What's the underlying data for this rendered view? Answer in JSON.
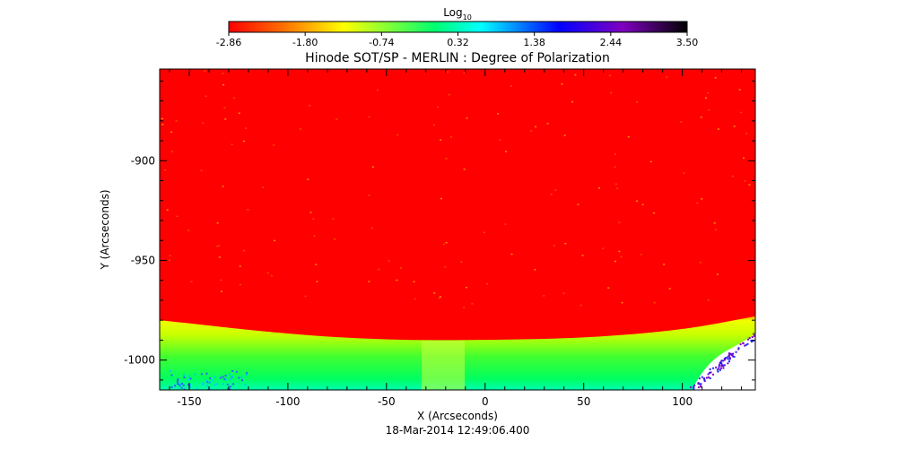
{
  "chart_data": {
    "type": "heatmap",
    "title": "Hinode SOT/SP - MERLIN : Degree of Polarization",
    "xlabel": "X (Arcseconds)",
    "ylabel": "Y (Arcseconds)",
    "timestamp": "18-Mar-2014 12:49:06.400",
    "xlim": [
      -165,
      137
    ],
    "ylim": [
      -1015,
      -854
    ],
    "xticks": [
      -150,
      -100,
      -50,
      0,
      50,
      100
    ],
    "yticks": [
      -900,
      -950,
      -1000
    ],
    "colorbar": {
      "label_base": "Log",
      "label_sub": "10",
      "min": -2.86,
      "max": 3.5,
      "ticks": [
        "-2.86",
        "-1.80",
        "-0.74",
        "0.32",
        "1.38",
        "2.44",
        "3.50"
      ],
      "colors": [
        "#ff0000",
        "#ff8000",
        "#ffff00",
        "#00ff60",
        "#00ffff",
        "#0000ff",
        "#8000c0",
        "#000000"
      ]
    },
    "limb": {
      "description_points": [
        [
          -165,
          -980
        ],
        [
          -100,
          -987
        ],
        [
          -50,
          -990
        ],
        [
          0,
          -990
        ],
        [
          50,
          -989
        ],
        [
          100,
          -985
        ],
        [
          137,
          -978
        ]
      ]
    }
  }
}
